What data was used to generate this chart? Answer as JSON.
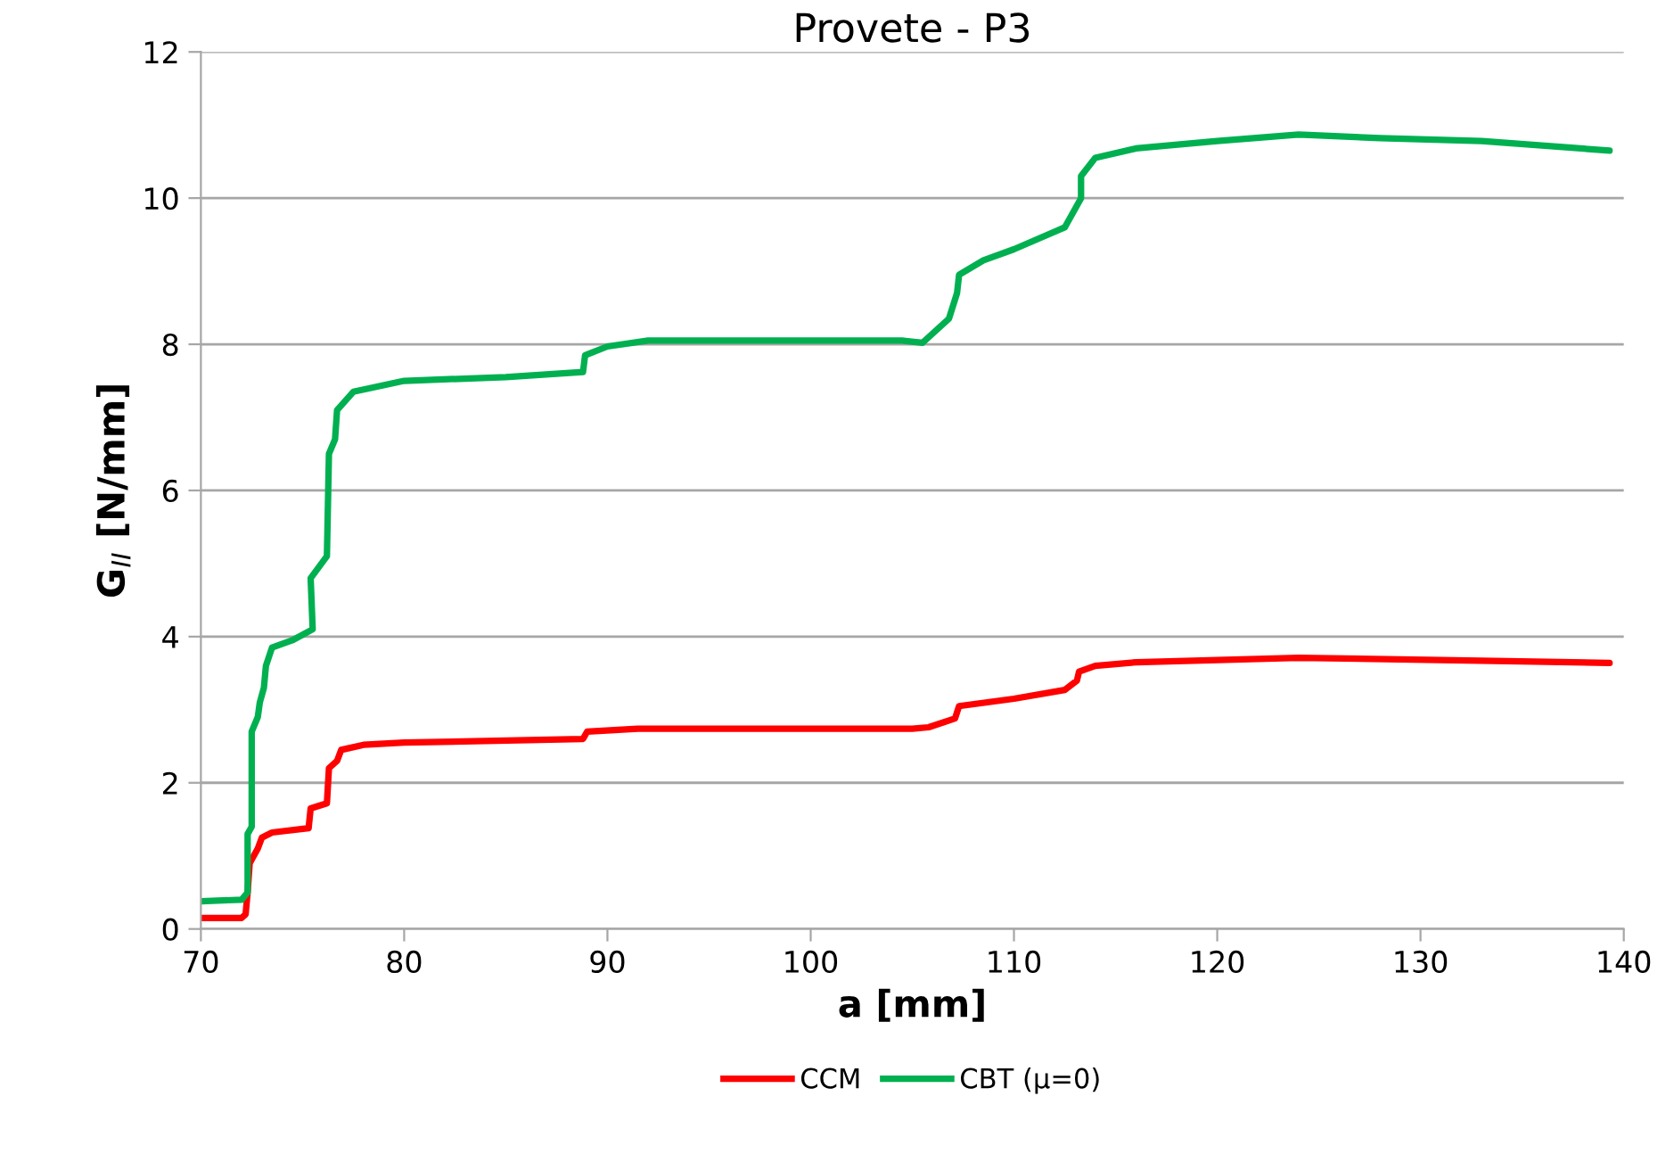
{
  "chart_data": {
    "type": "line",
    "title": "Provete - P3",
    "xlabel": "a [mm]",
    "ylabel": "G$_{II}$ [N/mm]",
    "xlim": [
      70,
      140
    ],
    "xticks": [
      70,
      80,
      90,
      100,
      110,
      120,
      130,
      140
    ],
    "ylim": [
      0,
      12
    ],
    "yticks": [
      0,
      2,
      4,
      6,
      8,
      10,
      12
    ],
    "grid": "y",
    "legend": "bottom",
    "marker": "none",
    "line_style": "solid",
    "series": [
      {
        "name": "CCM",
        "color": "#ff0000",
        "x": [
          70,
          72,
          72.2,
          72.3,
          72.4,
          72.6,
          72.8,
          73,
          73.5,
          75.3,
          75.4,
          76.2,
          76.3,
          76.7,
          76.9,
          78,
          80,
          88.8,
          89,
          91.5,
          105,
          105.8,
          107.1,
          107.3,
          110,
          112.5,
          113.1,
          113.2,
          114,
          116,
          124,
          133,
          139.3
        ],
        "values": [
          0.15,
          0.15,
          0.2,
          0.5,
          0.9,
          1.0,
          1.1,
          1.25,
          1.32,
          1.38,
          1.65,
          1.72,
          2.2,
          2.3,
          2.45,
          2.52,
          2.55,
          2.6,
          2.7,
          2.74,
          2.74,
          2.76,
          2.88,
          3.05,
          3.15,
          3.27,
          3.4,
          3.52,
          3.6,
          3.65,
          3.71,
          3.67,
          3.64
        ]
      },
      {
        "name": "CBT (μ=0)",
        "color": "#00b050",
        "x": [
          70,
          72,
          72.3,
          72.3,
          72.5,
          72.5,
          72.8,
          72.9,
          73.1,
          73.2,
          73.5,
          74.5,
          75.5,
          75.4,
          76.2,
          76.3,
          76.6,
          76.7,
          77.5,
          80,
          85,
          88.8,
          88.9,
          90,
          92,
          104.5,
          105.5,
          106.8,
          107.2,
          107.3,
          108.5,
          110,
          112.5,
          113.3,
          113.3,
          114,
          116,
          120,
          124,
          128,
          133,
          139.3
        ],
        "values": [
          0.38,
          0.4,
          0.5,
          1.3,
          1.4,
          2.7,
          2.9,
          3.1,
          3.3,
          3.6,
          3.85,
          3.95,
          4.1,
          4.8,
          5.1,
          6.5,
          6.7,
          7.1,
          7.35,
          7.5,
          7.55,
          7.62,
          7.85,
          7.97,
          8.05,
          8.05,
          8.02,
          8.35,
          8.7,
          8.95,
          9.15,
          9.3,
          9.6,
          10.0,
          10.3,
          10.55,
          10.68,
          10.78,
          10.87,
          10.82,
          10.78,
          10.65
        ]
      }
    ]
  }
}
